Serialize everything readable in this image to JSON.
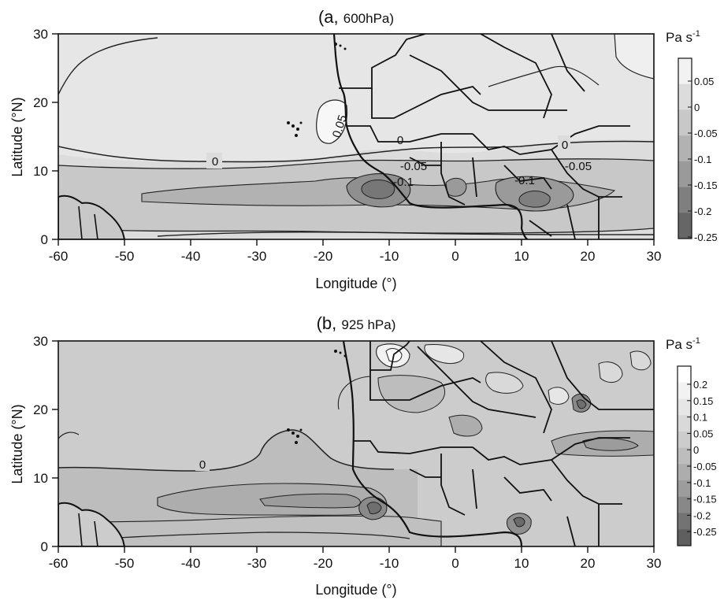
{
  "chart_data": [
    {
      "type": "heatmap",
      "title": "(a, 600hPa)",
      "title_main": "(a, ",
      "title_level": "600hPa)",
      "xlabel": "Longitude (°)",
      "ylabel": "Latitude (°N)",
      "xlim": [
        -60,
        30
      ],
      "ylim": [
        0,
        30
      ],
      "x_ticks": [
        "-60",
        "-50",
        "-40",
        "-30",
        "-20",
        "-10",
        "0",
        "10",
        "20",
        "30"
      ],
      "y_ticks": [
        "0",
        "10",
        "20",
        "30"
      ],
      "colorbar": {
        "unit": "Pa s",
        "unit_exp": "-1",
        "labels": [
          "0.05",
          "0",
          "-0.05",
          "-0.1",
          "-0.15",
          "-0.2",
          "-0.25"
        ],
        "colors": [
          "#f2f2f2",
          "#dcdcdc",
          "#c8c8c8",
          "#b2b2b2",
          "#9a9a9a",
          "#7f7f7f",
          "#666666"
        ]
      },
      "contour_labels": [
        {
          "text": "0",
          "lon": -39,
          "lat": 11
        },
        {
          "text": "0.05",
          "lon": -16,
          "lat": 17.5
        },
        {
          "text": "0",
          "lon": -6,
          "lat": 14
        },
        {
          "text": "-0.05",
          "lon": -6,
          "lat": 10.5
        },
        {
          "text": "-0.1",
          "lon": -8,
          "lat": 8
        },
        {
          "text": "-0.1",
          "lon": 9,
          "lat": 8.5
        },
        {
          "text": "-0.05",
          "lon": 17,
          "lat": 10.5
        },
        {
          "text": "0",
          "lon": 20,
          "lat": 14
        }
      ],
      "ocean_min_region": {
        "lon_range": [
          -45,
          25
        ],
        "lat_center": 6.5,
        "min_value": -0.2
      },
      "north_max_region": {
        "lon_center": -17,
        "lat_center": 19.5,
        "max_value": 0.05
      }
    },
    {
      "type": "heatmap",
      "title": "(b, 925 hPa)",
      "title_main": "(b, ",
      "title_level": "925 hPa)",
      "xlabel": "Longitude (°)",
      "ylabel": "Latitude (°N)",
      "xlim": [
        -60,
        30
      ],
      "ylim": [
        0,
        30
      ],
      "x_ticks": [
        "-60",
        "-50",
        "-40",
        "-30",
        "-20",
        "-10",
        "0",
        "10",
        "20",
        "30"
      ],
      "y_ticks": [
        "0",
        "10",
        "20",
        "30"
      ],
      "colorbar": {
        "unit": "Pa s",
        "unit_exp": "-1",
        "labels": [
          "0.2",
          "0.15",
          "0.1",
          "0.05",
          "0",
          "-0.05",
          "-0.1",
          "-0.15",
          "-0.2",
          "-0.25"
        ],
        "colors": [
          "#ffffff",
          "#f2f2f2",
          "#e6e6e6",
          "#d9d9d9",
          "#cccccc",
          "#bdbdbd",
          "#adadad",
          "#9c9c9c",
          "#888888",
          "#737373",
          "#5f5f5f"
        ]
      },
      "contour_labels": [
        {
          "text": "0",
          "lon": -40,
          "lat": 11.5
        }
      ],
      "ocean_min_region": {
        "lon_range": [
          -42,
          -12
        ],
        "lat_center": 6.5,
        "min_value": -0.15
      }
    }
  ]
}
